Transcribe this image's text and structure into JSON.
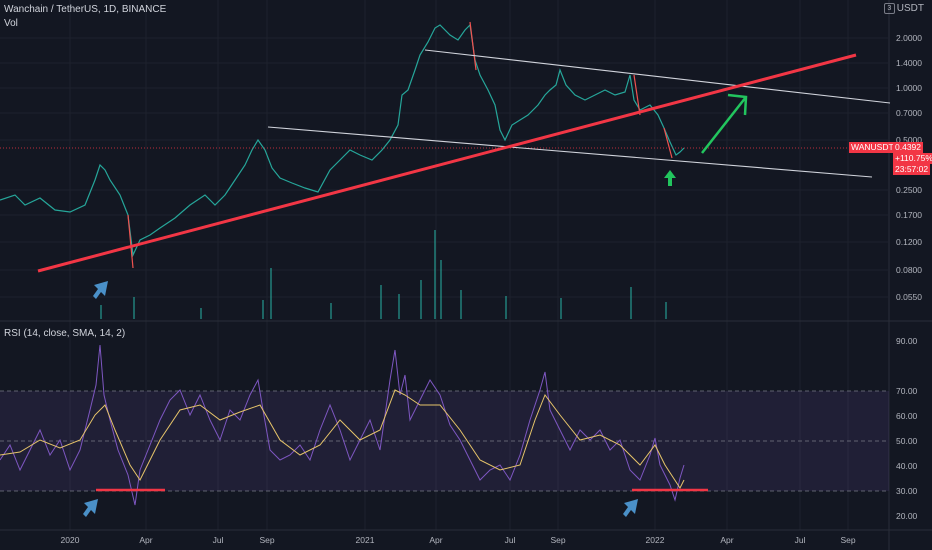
{
  "header": {
    "title": "Wanchain / TetherUS, 1D, BINANCE",
    "volume_label": "Vol",
    "currency": "USDT",
    "currency_icon": "3"
  },
  "price_axis": {
    "ticks": [
      "2.0000",
      "1.4000",
      "1.0000",
      "0.7000",
      "0.5000",
      "0.2500",
      "0.1700",
      "0.1200",
      "0.0800",
      "0.0550"
    ],
    "last_price_badge": {
      "symbol": "WANUSDT",
      "price": "0.4392",
      "change": "+110.75%",
      "countdown": "23:57:02",
      "color": "#f23645"
    }
  },
  "rsi_panel": {
    "label": "RSI (14, close, SMA, 14, 2)",
    "ticks": [
      "90.00",
      "70.00",
      "60.00",
      "50.00",
      "40.00",
      "30.00",
      "20.00"
    ],
    "upper_band": 70,
    "lower_band": 30,
    "line_color": "#7e57c2",
    "ma_color": "#e6c46a"
  },
  "time_axis": {
    "ticks": [
      "2020",
      "Apr",
      "Jul",
      "Sep",
      "2021",
      "Apr",
      "Jul",
      "Sep",
      "2022",
      "Apr",
      "Jul",
      "Sep"
    ]
  },
  "annotations": {
    "trendline_color": "#f23645",
    "channel_color": "#d1d4dc",
    "up_arrow_color": "#22c55e",
    "pointer_color": "#4a90c8",
    "pointer_icons": [
      "pointer-arrow-icon",
      "pointer-arrow-icon",
      "pointer-arrow-icon"
    ],
    "up_arrow_icon": "up-arrow-icon",
    "target_arrow_icon": "diagonal-up-arrow-icon"
  },
  "colors": {
    "background": "#131722",
    "up_candle": "#26a69a",
    "down_candle": "#ef5350",
    "grid": "#1e222d",
    "axis_text": "#b2b5be"
  }
}
